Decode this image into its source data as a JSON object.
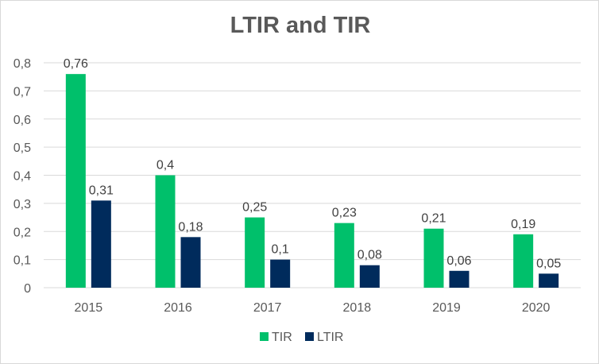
{
  "chart_data": {
    "type": "bar",
    "title": "LTIR and TIR",
    "xlabel": "",
    "ylabel": "",
    "categories": [
      "2015",
      "2016",
      "2017",
      "2018",
      "2019",
      "2020"
    ],
    "series": [
      {
        "name": "TIR",
        "color": "#00c06b",
        "values": [
          0.76,
          0.4,
          0.25,
          0.23,
          0.21,
          0.19
        ],
        "labels": [
          "0,76",
          "0,4",
          "0,25",
          "0,23",
          "0,21",
          "0,19"
        ]
      },
      {
        "name": "LTIR",
        "color": "#002b5c",
        "values": [
          0.31,
          0.18,
          0.1,
          0.08,
          0.06,
          0.05
        ],
        "labels": [
          "0,31",
          "0,18",
          "0,1",
          "0,08",
          "0,06",
          "0,05"
        ]
      }
    ],
    "ylim": [
      0,
      0.8
    ],
    "yticks": [
      0,
      0.1,
      0.2,
      0.3,
      0.4,
      0.5,
      0.6,
      0.7,
      0.8
    ],
    "ytick_labels": [
      "0",
      "0,1",
      "0,2",
      "0,3",
      "0,4",
      "0,5",
      "0,6",
      "0,7",
      "0,8"
    ],
    "grid": true,
    "legend_position": "bottom"
  }
}
